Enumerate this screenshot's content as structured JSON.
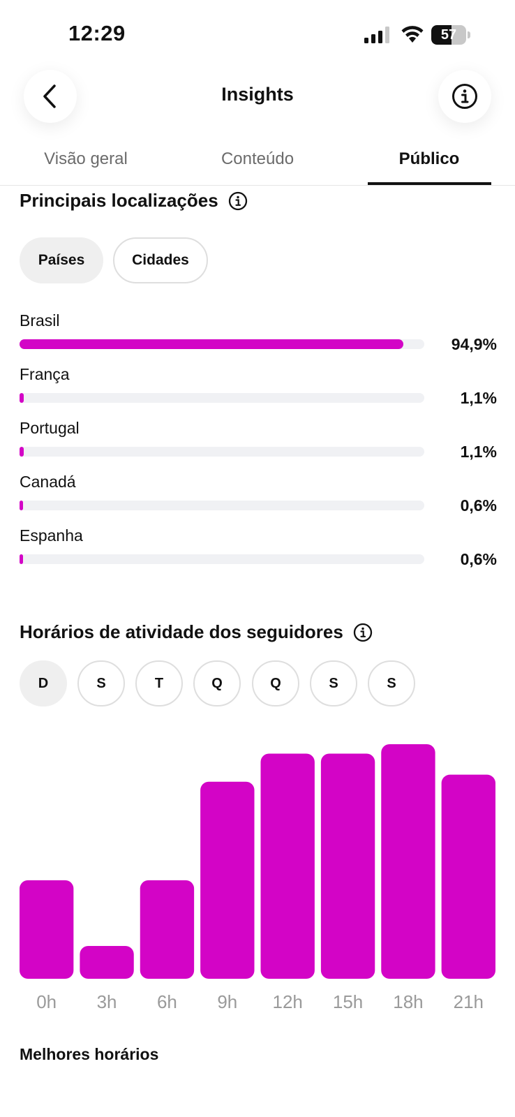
{
  "status_bar": {
    "time": "12:29",
    "battery": "57",
    "battery_level": 0.57
  },
  "header": {
    "title": "Insights",
    "back_icon": "chevron-left-icon",
    "info_icon": "info-icon"
  },
  "tabs": [
    {
      "label": "Visão geral",
      "active": false
    },
    {
      "label": "Conteúdo",
      "active": false
    },
    {
      "label": "Público",
      "active": true
    }
  ],
  "locations": {
    "title": "Principais localizações",
    "filters": [
      {
        "label": "Países",
        "selected": true
      },
      {
        "label": "Cidades",
        "selected": false
      }
    ],
    "items": [
      {
        "name": "Brasil",
        "percent_label": "94,9%",
        "value": 94.9
      },
      {
        "name": "França",
        "percent_label": "1,1%",
        "value": 1.1
      },
      {
        "name": "Portugal",
        "percent_label": "1,1%",
        "value": 1.1
      },
      {
        "name": "Canadá",
        "percent_label": "0,6%",
        "value": 0.6
      },
      {
        "name": "Espanha",
        "percent_label": "0,6%",
        "value": 0.6
      }
    ],
    "bar_color": "#d304c6"
  },
  "activity": {
    "title": "Horários de atividade dos seguidores",
    "days": [
      {
        "label": "D",
        "selected": true
      },
      {
        "label": "S",
        "selected": false
      },
      {
        "label": "T",
        "selected": false
      },
      {
        "label": "Q",
        "selected": false
      },
      {
        "label": "Q",
        "selected": false
      },
      {
        "label": "S",
        "selected": false
      },
      {
        "label": "S",
        "selected": false
      }
    ]
  },
  "chart_data": {
    "type": "bar",
    "categories": [
      "0h",
      "3h",
      "6h",
      "9h",
      "12h",
      "15h",
      "18h",
      "21h"
    ],
    "values": [
      42,
      14,
      42,
      84,
      96,
      96,
      100,
      87
    ],
    "ylim": [
      0,
      100
    ],
    "color": "#d304c6",
    "grid": false
  },
  "footer": {
    "title": "Melhores horários"
  }
}
